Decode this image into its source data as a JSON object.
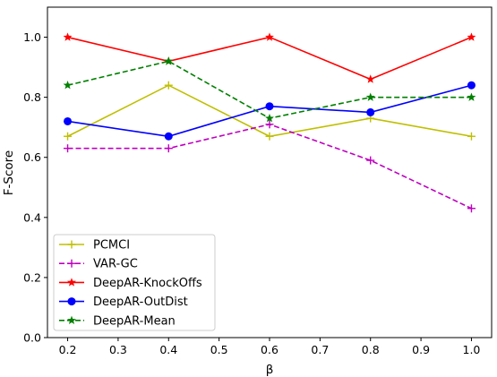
{
  "chart_data": {
    "type": "line",
    "title": "",
    "xlabel": "β",
    "ylabel": "F-Score",
    "x": [
      0.2,
      0.4,
      0.6,
      0.8,
      1.0
    ],
    "xlim": [
      0.16,
      1.04
    ],
    "ylim": [
      0.0,
      1.1
    ],
    "xticks": [
      "0.2",
      "0.3",
      "0.4",
      "0.5",
      "0.6",
      "0.7",
      "0.8",
      "0.9",
      "1.0"
    ],
    "yticks": [
      "0.0",
      "0.2",
      "0.4",
      "0.6",
      "0.8",
      "1.0"
    ],
    "grid": false,
    "legend_position": "lower-left",
    "series": [
      {
        "name": "PCMCI",
        "values": [
          0.67,
          0.84,
          0.67,
          0.73,
          0.67
        ],
        "color": "#bfbf00",
        "dash": "solid",
        "marker": "plus"
      },
      {
        "name": "VAR-GC",
        "values": [
          0.63,
          0.63,
          0.71,
          0.59,
          0.43
        ],
        "color": "#bf00bf",
        "dash": "dashed",
        "marker": "plus"
      },
      {
        "name": "DeepAR-KnockOffs",
        "values": [
          1.0,
          0.92,
          1.0,
          0.86,
          1.0
        ],
        "color": "#ff0000",
        "dash": "solid",
        "marker": "star"
      },
      {
        "name": "DeepAR-OutDist",
        "values": [
          0.72,
          0.67,
          0.77,
          0.75,
          0.84
        ],
        "color": "#0000ff",
        "dash": "solid",
        "marker": "circle"
      },
      {
        "name": "DeepAR-Mean",
        "values": [
          0.84,
          0.92,
          0.73,
          0.8,
          0.8
        ],
        "color": "#008000",
        "dash": "dashed",
        "marker": "star"
      }
    ]
  }
}
